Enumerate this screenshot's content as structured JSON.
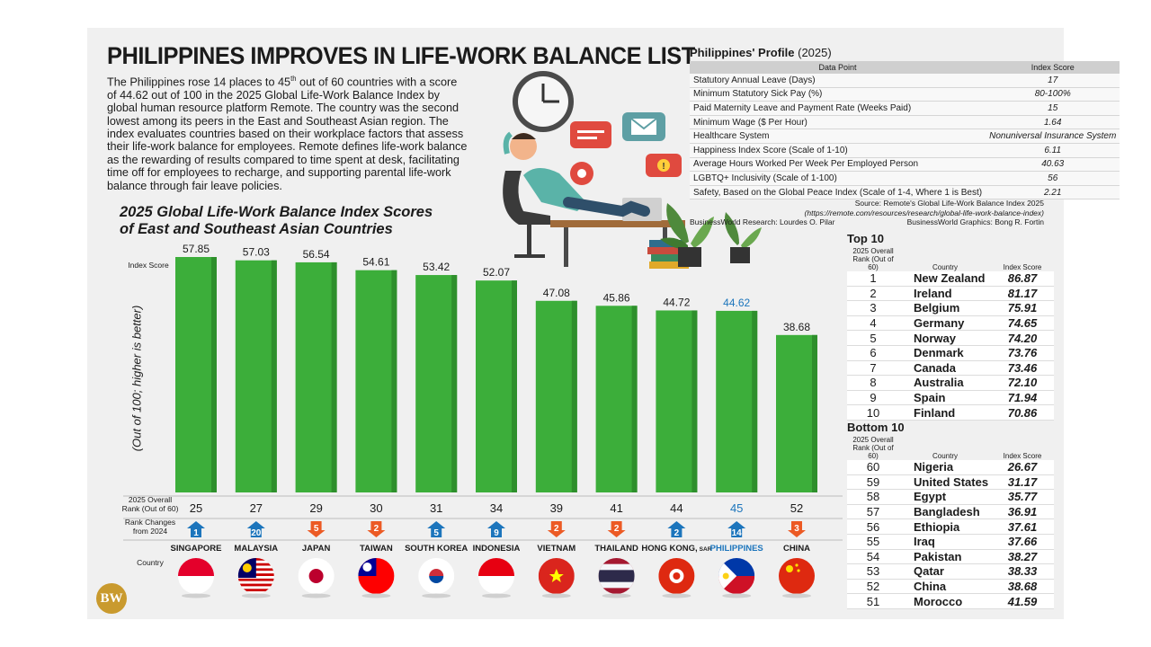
{
  "headline": "PHILIPPINES IMPROVES IN LIFE-WORK BALANCE LIST",
  "intro_before": "The Philippines rose 14 places to 45",
  "intro_sup": "th",
  "intro_after": " out of 60 countries with a score of 44.62 out of 100 in the 2025 Global Life-Work Balance Index by global human resource platform Remote. The country was the second lowest among its peers in the East and Southeast Asian region. The index evaluates countries based on their workplace factors that assess their life-work balance for employees. Remote defines life-work balance as the rewarding of results compared to time spent at desk, facilitating time off for employees to recharge, and supporting parental life-work balance through fair leave policies.",
  "chart_title_line1": "2025 Global Life-Work Balance Index Scores",
  "chart_title_line2": "of East and Southeast Asian Countries",
  "labels": {
    "index_score": "Index Score",
    "yaxis": "(Out of 100; higher is better)",
    "overall_rank_1": "2025 Overall",
    "overall_rank_2": "Rank (Out of 60)",
    "rank_changes_1": "Rank Changes",
    "rank_changes_2": "from 2024",
    "country": "Country"
  },
  "colors": {
    "bar": "#3cae3a",
    "bar_dark": "#2e8f2c",
    "up": "#1c75bc",
    "down": "#ec5a24",
    "highlight": "#1c75bc"
  },
  "chart_data": {
    "type": "bar",
    "title": "2025 Global Life-Work Balance Index Scores of East and Southeast Asian Countries",
    "ylabel": "(Out of 100; higher is better)",
    "categories": [
      "SINGAPORE",
      "MALAYSIA",
      "JAPAN",
      "TAIWAN",
      "SOUTH KOREA",
      "INDONESIA",
      "VIETNAM",
      "THAILAND",
      "HONG KONG, SAR",
      "PHILIPPINES",
      "CHINA"
    ],
    "values": [
      57.85,
      57.03,
      56.54,
      54.61,
      53.42,
      52.07,
      47.08,
      45.86,
      44.72,
      44.62,
      38.68
    ],
    "value_labels": [
      "57.85",
      "57.03",
      "56.54",
      "54.61",
      "53.42",
      "52.07",
      "47.08",
      "45.86",
      "44.72",
      "44.62",
      "38.68"
    ],
    "overall_rank": [
      "25",
      "27",
      "29",
      "30",
      "31",
      "34",
      "39",
      "41",
      "44",
      "45",
      "52"
    ],
    "rank_change": [
      "1",
      "20",
      "5",
      "2",
      "5",
      "9",
      "2",
      "2",
      "2",
      "14",
      "3"
    ],
    "rank_direction": [
      "up",
      "up",
      "down",
      "down",
      "up",
      "up",
      "down",
      "down",
      "up",
      "up",
      "down"
    ],
    "highlight": "PHILIPPINES"
  },
  "country_names": {
    "singapore": "SINGAPORE",
    "malaysia": "MALAYSIA",
    "japan": "JAPAN",
    "taiwan": "TAIWAN",
    "south_korea": "SOUTH KOREA",
    "indonesia": "INDONESIA",
    "vietnam": "VIETNAM",
    "thailand": "THAILAND",
    "hong_kong": "HONG KONG,",
    "hong_kong_suffix": "SAR",
    "philippines": "PHILIPPINES",
    "china": "CHINA"
  },
  "profile": {
    "title_bold": "Philippines' Profile",
    "title_year": " (2025)",
    "header_point": "Data Point",
    "header_score": "Index Score",
    "rows": [
      {
        "point": "Statutory Annual Leave (Days)",
        "value": "17"
      },
      {
        "point": "Minimum Statutory Sick Pay (%)",
        "value": "80-100%"
      },
      {
        "point": "Paid Maternity Leave and Payment Rate (Weeks Paid)",
        "value": "15"
      },
      {
        "point": "Minimum Wage ($ Per Hour)",
        "value": "1.64"
      },
      {
        "point": "Healthcare System",
        "value": "Nonuniversal Insurance System"
      },
      {
        "point": "Happiness Index Score (Scale of 1-10)",
        "value": "6.11"
      },
      {
        "point": "Average Hours Worked Per Week Per Employed Person",
        "value": "40.63"
      },
      {
        "point": "LGBTQ+ Inclusivity (Scale of 1-100)",
        "value": "56"
      },
      {
        "point": "Safety, Based on the Global Peace Index (Scale of 1-4, Where 1 is Best)",
        "value": "2.21"
      }
    ],
    "source_line1": "Source: Remote's Global Life-Work Balance Index 2025",
    "source_line2": "(https://remote.com/resources/research/global-life-work-balance-index)",
    "research": "BusinessWorld Research: Lourdes O. Pilar",
    "graphics": "BusinessWorld Graphics: Bong R. Fortin"
  },
  "top10": {
    "title": "Top 10",
    "h_rank": "2025 Overall Rank (Out of 60)",
    "h_country": "Country",
    "h_score": "Index Score",
    "rows": [
      {
        "rank": "1",
        "country": "New Zealand",
        "score": "86.87"
      },
      {
        "rank": "2",
        "country": "Ireland",
        "score": "81.17"
      },
      {
        "rank": "3",
        "country": "Belgium",
        "score": "75.91"
      },
      {
        "rank": "4",
        "country": "Germany",
        "score": "74.65"
      },
      {
        "rank": "5",
        "country": "Norway",
        "score": "74.20"
      },
      {
        "rank": "6",
        "country": "Denmark",
        "score": "73.76"
      },
      {
        "rank": "7",
        "country": "Canada",
        "score": "73.46"
      },
      {
        "rank": "8",
        "country": "Australia",
        "score": "72.10"
      },
      {
        "rank": "9",
        "country": "Spain",
        "score": "71.94"
      },
      {
        "rank": "10",
        "country": "Finland",
        "score": "70.86"
      }
    ]
  },
  "bottom10": {
    "title": "Bottom 10",
    "h_rank": "2025 Overall Rank (Out of 60)",
    "h_country": "Country",
    "h_score": "Index Score",
    "rows": [
      {
        "rank": "60",
        "country": "Nigeria",
        "score": "26.67"
      },
      {
        "rank": "59",
        "country": "United States",
        "score": "31.17"
      },
      {
        "rank": "58",
        "country": "Egypt",
        "score": "35.77"
      },
      {
        "rank": "57",
        "country": "Bangladesh",
        "score": "36.91"
      },
      {
        "rank": "56",
        "country": "Ethiopia",
        "score": "37.61"
      },
      {
        "rank": "55",
        "country": "Iraq",
        "score": "37.66"
      },
      {
        "rank": "54",
        "country": "Pakistan",
        "score": "38.27"
      },
      {
        "rank": "53",
        "country": "Qatar",
        "score": "38.33"
      },
      {
        "rank": "52",
        "country": "China",
        "score": "38.68"
      },
      {
        "rank": "51",
        "country": "Morocco",
        "score": "41.59"
      }
    ]
  },
  "logo_text": "BW"
}
